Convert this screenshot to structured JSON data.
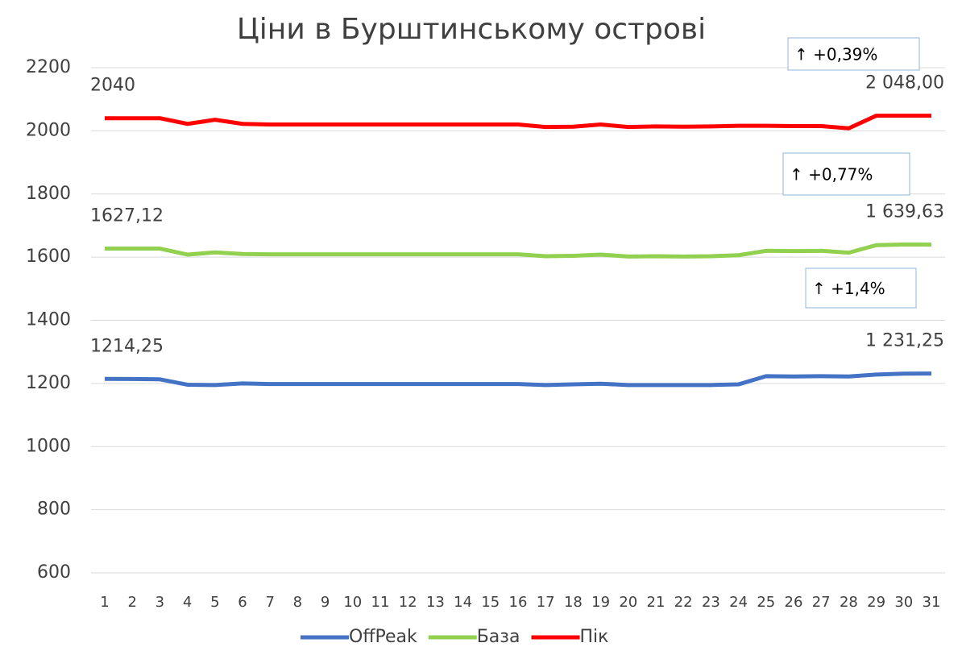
{
  "chart_data": {
    "type": "line",
    "title": "Ціни в Бурштинському острові",
    "categories": [
      "1",
      "2",
      "3",
      "4",
      "5",
      "6",
      "7",
      "8",
      "9",
      "10",
      "11",
      "12",
      "13",
      "14",
      "15",
      "16",
      "17",
      "18",
      "19",
      "20",
      "21",
      "22",
      "23",
      "24",
      "25",
      "26",
      "27",
      "28",
      "29",
      "30",
      "31"
    ],
    "series": [
      {
        "name": "OffPeak",
        "color": "#4472c4",
        "values": [
          1214.25,
          1214,
          1213,
          1196,
          1195,
          1200,
          1198,
          1198,
          1198,
          1198,
          1198,
          1198,
          1198,
          1198,
          1198,
          1198,
          1195,
          1197,
          1199,
          1195,
          1195,
          1195,
          1195,
          1197,
          1223,
          1222,
          1223,
          1222,
          1228,
          1231,
          1231.25
        ],
        "value_labels": [
          "1214,25",
          null,
          null,
          null,
          null,
          null,
          null,
          null,
          null,
          null,
          null,
          null,
          null,
          null,
          null,
          null,
          null,
          null,
          null,
          null,
          null,
          null,
          null,
          null,
          null,
          null,
          null,
          null,
          null,
          null,
          "1 231,25"
        ]
      },
      {
        "name": "База",
        "color": "#92d050",
        "values": [
          1627.12,
          1627,
          1627,
          1608,
          1615,
          1610,
          1609,
          1609,
          1609,
          1609,
          1609,
          1609,
          1609,
          1609,
          1609,
          1609,
          1603,
          1604,
          1608,
          1602,
          1603,
          1602,
          1603,
          1606,
          1620,
          1619,
          1620,
          1614,
          1638,
          1640,
          1639.63
        ],
        "value_labels": [
          "1627,12",
          null,
          null,
          null,
          null,
          null,
          null,
          null,
          null,
          null,
          null,
          null,
          null,
          null,
          null,
          null,
          null,
          null,
          null,
          null,
          null,
          null,
          null,
          null,
          null,
          null,
          null,
          null,
          null,
          null,
          "1 639,63"
        ]
      },
      {
        "name": "Пік",
        "color": "#ff0000",
        "values": [
          2040,
          2040,
          2040,
          2022,
          2035,
          2022,
          2020,
          2020,
          2020,
          2020,
          2020,
          2020,
          2020,
          2020,
          2020,
          2020,
          2012,
          2013,
          2020,
          2012,
          2014,
          2013,
          2014,
          2016,
          2016,
          2015,
          2015,
          2008,
          2048,
          2048,
          2048
        ],
        "value_labels": [
          "2040",
          null,
          null,
          null,
          null,
          null,
          null,
          null,
          null,
          null,
          null,
          null,
          null,
          null,
          null,
          null,
          null,
          null,
          null,
          null,
          null,
          null,
          null,
          null,
          null,
          null,
          null,
          null,
          null,
          null,
          "2 048,00"
        ]
      }
    ],
    "annotations": [
      "↑ +0,39%",
      "↑ +0,77%",
      "↑ +1,4%"
    ],
    "ylim": [
      600,
      2200
    ],
    "yticks": [
      600,
      800,
      1000,
      1200,
      1400,
      1600,
      1800,
      2000,
      2200
    ],
    "grid": true,
    "legend": "bottom"
  }
}
